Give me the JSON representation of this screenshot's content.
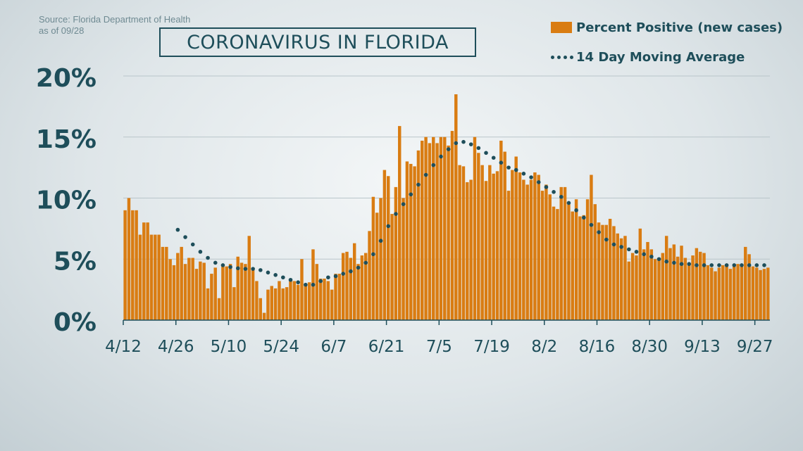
{
  "source": {
    "line1": "Source: Florida Department of Health",
    "line2": "as of 09/28"
  },
  "title": "CORONAVIRUS IN FLORIDA",
  "legend": {
    "bars": "Percent Positive (new cases)",
    "line": "14 Day Moving Average"
  },
  "colors": {
    "bar": "#d97c12",
    "line": "#1e4e5a",
    "axis_text": "#1e4e5a",
    "grid": "#b9c5ca"
  },
  "chart_data": {
    "type": "bar",
    "title": "CORONAVIRUS IN FLORIDA",
    "xlabel": "",
    "ylabel": "",
    "ylim": [
      0,
      20
    ],
    "y_ticks": [
      "0%",
      "5%",
      "10%",
      "15%",
      "20%"
    ],
    "y_tick_values": [
      0,
      5,
      10,
      15,
      20
    ],
    "x_tick_labels": [
      "4/12",
      "4/26",
      "5/10",
      "5/24",
      "6/7",
      "6/21",
      "7/5",
      "7/19",
      "8/2",
      "8/16",
      "8/30",
      "9/13",
      "9/27"
    ],
    "x_tick_index": [
      0,
      14,
      28,
      42,
      56,
      70,
      84,
      98,
      112,
      126,
      140,
      154,
      168
    ],
    "grid": true,
    "legend_position": "top-right",
    "series": [
      {
        "name": "Percent Positive (new cases)",
        "type": "bar",
        "values": [
          9.0,
          10.0,
          9.0,
          9.0,
          7.0,
          8.0,
          8.0,
          7.0,
          7.0,
          7.0,
          6.0,
          6.0,
          5.0,
          4.5,
          5.5,
          6.0,
          4.6,
          5.1,
          5.1,
          4.2,
          4.8,
          4.7,
          2.6,
          3.8,
          4.3,
          1.8,
          4.4,
          4.4,
          4.6,
          2.7,
          5.2,
          4.7,
          4.6,
          6.9,
          4.3,
          3.2,
          1.8,
          0.6,
          2.5,
          2.8,
          2.6,
          3.2,
          2.6,
          2.7,
          3.2,
          3.2,
          2.9,
          5.0,
          2.9,
          3.1,
          5.8,
          4.6,
          3.4,
          3.4,
          3.2,
          2.5,
          3.8,
          3.8,
          5.5,
          5.6,
          5.1,
          6.3,
          4.6,
          5.3,
          5.5,
          7.3,
          10.1,
          8.8,
          10.0,
          12.3,
          11.8,
          8.7,
          10.9,
          15.9,
          10.0,
          13.0,
          12.8,
          12.6,
          13.9,
          14.7,
          15.0,
          14.5,
          15.0,
          14.5,
          15.0,
          15.0,
          14.3,
          15.5,
          18.5,
          12.7,
          12.6,
          11.3,
          11.5,
          15.0,
          13.7,
          12.7,
          11.4,
          12.7,
          12.0,
          12.2,
          14.7,
          13.8,
          10.6,
          12.3,
          13.4,
          12.1,
          11.5,
          11.1,
          11.5,
          12.1,
          11.9,
          10.6,
          11.1,
          10.3,
          9.3,
          9.1,
          10.9,
          10.9,
          9.5,
          8.9,
          9.9,
          8.5,
          8.6,
          9.9,
          11.9,
          9.5,
          8.0,
          7.8,
          7.8,
          8.3,
          7.7,
          7.1,
          6.7,
          6.9,
          4.8,
          5.5,
          5.3,
          7.5,
          5.8,
          6.4,
          5.8,
          5.0,
          5.1,
          5.5,
          6.9,
          5.9,
          6.2,
          5.2,
          6.1,
          5.1,
          4.7,
          5.3,
          5.9,
          5.6,
          5.5,
          4.5,
          4.3,
          4.0,
          4.3,
          4.5,
          4.6,
          4.2,
          4.6,
          4.6,
          4.4,
          6.0,
          5.4,
          4.4,
          4.3,
          4.1,
          4.2,
          4.3
        ]
      },
      {
        "name": "14 Day Moving Average",
        "type": "line",
        "start_index": 14,
        "values": [
          7.4,
          7.1,
          6.8,
          6.5,
          6.2,
          5.9,
          5.6,
          5.3,
          5.1,
          4.9,
          4.7,
          4.6,
          4.5,
          4.4,
          4.35,
          4.3,
          4.25,
          4.2,
          4.2,
          4.2,
          4.2,
          4.15,
          4.1,
          4.0,
          3.9,
          3.8,
          3.7,
          3.6,
          3.5,
          3.4,
          3.3,
          3.2,
          3.1,
          3.0,
          2.9,
          2.85,
          2.9,
          3.0,
          3.2,
          3.4,
          3.5,
          3.5,
          3.6,
          3.7,
          3.8,
          3.9,
          4.0,
          4.1,
          4.3,
          4.5,
          4.7,
          5.0,
          5.4,
          5.9,
          6.5,
          7.1,
          7.7,
          8.2,
          8.7,
          9.1,
          9.5,
          9.9,
          10.3,
          10.7,
          11.1,
          11.5,
          11.9,
          12.3,
          12.7,
          13.1,
          13.4,
          13.7,
          14.0,
          14.3,
          14.5,
          14.6,
          14.6,
          14.5,
          14.4,
          14.3,
          14.1,
          13.9,
          13.7,
          13.5,
          13.3,
          13.1,
          12.9,
          12.7,
          12.5,
          12.4,
          12.3,
          12.2,
          12.0,
          11.9,
          11.7,
          11.5,
          11.3,
          11.1,
          10.9,
          10.7,
          10.5,
          10.3,
          10.1,
          9.9,
          9.6,
          9.3,
          9.0,
          8.7,
          8.4,
          8.1,
          7.8,
          7.5,
          7.2,
          6.9,
          6.6,
          6.4,
          6.2,
          6.1,
          6.0,
          5.9,
          5.8,
          5.7,
          5.6,
          5.5,
          5.4,
          5.3,
          5.2,
          5.1,
          5.0,
          4.9,
          4.8,
          4.8,
          4.7,
          4.7,
          4.6,
          4.6,
          4.6,
          4.6,
          4.5,
          4.5,
          4.5,
          4.5,
          4.5,
          4.5,
          4.5,
          4.5,
          4.5,
          4.5,
          4.5,
          4.5,
          4.5,
          4.5,
          4.5,
          4.5,
          4.5,
          4.5,
          4.5
        ]
      }
    ]
  }
}
